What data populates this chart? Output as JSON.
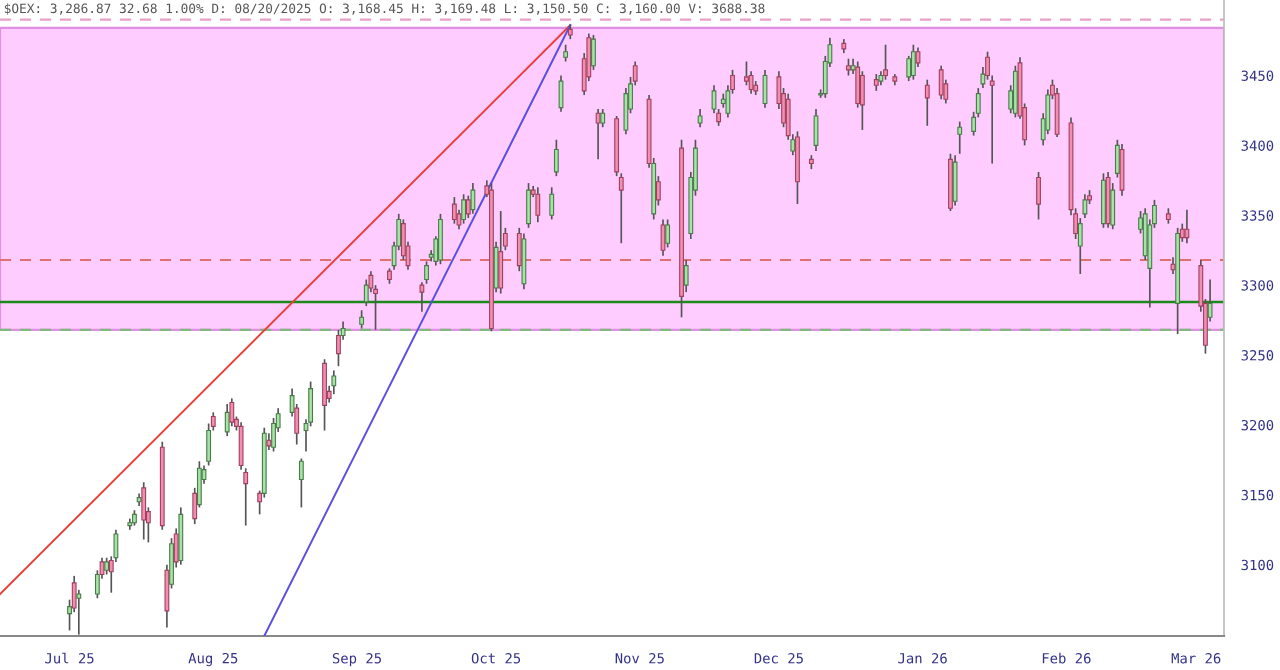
{
  "chart_data": {
    "type": "candlestick",
    "title": "$OEX: 3,286.87 32.68 1.00% D: 08/20/2025 O: 3,168.45 H: 3,169.48 L: 3,150.50 C: 3,160.00 V: 3688.38",
    "x": [
      "2025-07-01",
      "2025-07-02",
      "2025-07-03",
      "2025-07-07",
      "2025-07-08",
      "2025-07-09",
      "2025-07-10",
      "2025-07-11",
      "2025-07-14",
      "2025-07-15",
      "2025-07-16",
      "2025-07-17",
      "2025-07-18",
      "2025-07-21",
      "2025-07-22",
      "2025-07-23",
      "2025-07-24",
      "2025-07-25",
      "2025-07-28",
      "2025-07-29",
      "2025-07-30",
      "2025-07-31",
      "2025-08-01",
      "2025-08-04",
      "2025-08-05",
      "2025-08-06",
      "2025-08-07",
      "2025-08-08",
      "2025-08-11",
      "2025-08-12",
      "2025-08-13",
      "2025-08-14",
      "2025-08-15",
      "2025-08-18",
      "2025-08-19",
      "2025-08-20",
      "2025-08-21",
      "2025-08-22",
      "2025-08-25",
      "2025-08-26",
      "2025-08-27",
      "2025-08-28",
      "2025-08-29",
      "2025-09-02",
      "2025-09-03",
      "2025-09-04",
      "2025-09-05",
      "2025-09-08",
      "2025-09-09",
      "2025-09-10",
      "2025-09-11",
      "2025-09-12",
      "2025-09-15",
      "2025-09-16",
      "2025-09-17",
      "2025-09-18",
      "2025-09-19",
      "2025-09-22",
      "2025-09-23",
      "2025-09-24",
      "2025-09-25",
      "2025-09-26",
      "2025-09-29",
      "2025-09-30",
      "2025-10-01",
      "2025-10-02",
      "2025-10-03",
      "2025-10-06",
      "2025-10-07",
      "2025-10-08",
      "2025-10-09",
      "2025-10-10",
      "2025-10-13",
      "2025-10-14",
      "2025-10-15",
      "2025-10-16",
      "2025-10-17",
      "2025-10-20",
      "2025-10-21",
      "2025-10-22",
      "2025-10-23",
      "2025-10-24",
      "2025-10-27",
      "2025-10-28",
      "2025-10-29",
      "2025-10-30",
      "2025-10-31",
      "2025-11-03",
      "2025-11-04",
      "2025-11-05",
      "2025-11-06",
      "2025-11-07",
      "2025-11-10",
      "2025-11-11",
      "2025-11-12",
      "2025-11-13",
      "2025-11-14",
      "2025-11-17",
      "2025-11-18",
      "2025-11-19",
      "2025-11-20",
      "2025-11-21",
      "2025-11-24",
      "2025-11-25",
      "2025-11-26",
      "2025-11-28",
      "2025-12-01",
      "2025-12-02",
      "2025-12-03",
      "2025-12-04",
      "2025-12-05",
      "2025-12-08",
      "2025-12-09",
      "2025-12-10",
      "2025-12-11",
      "2025-12-12",
      "2025-12-15",
      "2025-12-16",
      "2025-12-17",
      "2025-12-18",
      "2025-12-19",
      "2025-12-22",
      "2025-12-23",
      "2025-12-24",
      "2025-12-26",
      "2025-12-29",
      "2025-12-30",
      "2025-12-31",
      "2026-01-02",
      "2026-01-05",
      "2026-01-06",
      "2026-01-07",
      "2026-01-08",
      "2026-01-09",
      "2026-01-12",
      "2026-01-13",
      "2026-01-14",
      "2026-01-15",
      "2026-01-16",
      "2026-01-20",
      "2026-01-21",
      "2026-01-22",
      "2026-01-23",
      "2026-01-26",
      "2026-01-27",
      "2026-01-28",
      "2026-01-29",
      "2026-01-30",
      "2026-02-02",
      "2026-02-03",
      "2026-02-04",
      "2026-02-05",
      "2026-02-06",
      "2026-02-09",
      "2026-02-10",
      "2026-02-11",
      "2026-02-12",
      "2026-02-13",
      "2026-02-17",
      "2026-02-18",
      "2026-02-19",
      "2026-02-20",
      "2026-02-23",
      "2026-02-24",
      "2026-02-25",
      "2026-02-26",
      "2026-02-27",
      "2026-03-02",
      "2026-03-03",
      "2026-03-04"
    ],
    "ohlc": [
      [
        3065,
        3075,
        3053,
        3070
      ],
      [
        3087,
        3092,
        3066,
        3069
      ],
      [
        3076,
        3082,
        3050,
        3079
      ],
      [
        3079,
        3096,
        3076,
        3093
      ],
      [
        3102,
        3105,
        3090,
        3093
      ],
      [
        3096,
        3105,
        3093,
        3102
      ],
      [
        3103,
        3106,
        3080,
        3095
      ],
      [
        3105,
        3125,
        3102,
        3122
      ],
      [
        3128,
        3133,
        3125,
        3130
      ],
      [
        3130,
        3139,
        3128,
        3136
      ],
      [
        3145,
        3151,
        3142,
        3148
      ],
      [
        3155,
        3159,
        3118,
        3132
      ],
      [
        3138,
        3141,
        3116,
        3130
      ],
      [
        3184,
        3188,
        3125,
        3128
      ],
      [
        3096,
        3100,
        3055,
        3067
      ],
      [
        3086,
        3119,
        3083,
        3115
      ],
      [
        3122,
        3126,
        3098,
        3102
      ],
      [
        3103,
        3141,
        3100,
        3136
      ],
      [
        3151,
        3155,
        3129,
        3133
      ],
      [
        3143,
        3174,
        3141,
        3169
      ],
      [
        3161,
        3171,
        3158,
        3168
      ],
      [
        3174,
        3201,
        3171,
        3196
      ],
      [
        3206,
        3209,
        3196,
        3199
      ],
      [
        3195,
        3215,
        3192,
        3209
      ],
      [
        3216,
        3219,
        3199,
        3202
      ],
      [
        3204,
        3206,
        3196,
        3199
      ],
      [
        3199,
        3202,
        3168,
        3171
      ],
      [
        3166,
        3169,
        3128,
        3158
      ],
      [
        3151,
        3153,
        3136,
        3145
      ],
      [
        3151,
        3198,
        3148,
        3194
      ],
      [
        3189,
        3194,
        3182,
        3185
      ],
      [
        3184,
        3205,
        3181,
        3201
      ],
      [
        3198,
        3212,
        3195,
        3208
      ],
      [
        3209,
        3226,
        3206,
        3221
      ],
      [
        3212,
        3215,
        3186,
        3194
      ],
      [
        3161,
        3176,
        3141,
        3174
      ],
      [
        3196,
        3204,
        3181,
        3201
      ],
      [
        3202,
        3231,
        3199,
        3226
      ],
      [
        3244,
        3247,
        3196,
        3214
      ],
      [
        3224,
        3228,
        3216,
        3219
      ],
      [
        3228,
        3239,
        3222,
        3235
      ],
      [
        3264,
        3268,
        3242,
        3251
      ],
      [
        3264,
        3274,
        3261,
        3269
      ],
      [
        3272,
        3282,
        3269,
        3277
      ],
      [
        3288,
        3304,
        3285,
        3300
      ],
      [
        3307,
        3310,
        3295,
        3298
      ],
      [
        3297,
        3300,
        3268,
        3294
      ],
      [
        3310,
        3312,
        3301,
        3304
      ],
      [
        3314,
        3331,
        3311,
        3328
      ],
      [
        3328,
        3351,
        3325,
        3347
      ],
      [
        3344,
        3347,
        3318,
        3321
      ],
      [
        3328,
        3331,
        3311,
        3314
      ],
      [
        3300,
        3302,
        3281,
        3295
      ],
      [
        3304,
        3317,
        3301,
        3314
      ],
      [
        3320,
        3325,
        3317,
        3322
      ],
      [
        3317,
        3335,
        3314,
        3333
      ],
      [
        3318,
        3351,
        3315,
        3347
      ],
      [
        3358,
        3363,
        3344,
        3347
      ],
      [
        3351,
        3354,
        3340,
        3343
      ],
      [
        3347,
        3365,
        3344,
        3361
      ],
      [
        3361,
        3364,
        3348,
        3351
      ],
      [
        3354,
        3373,
        3351,
        3368
      ],
      [
        3371,
        3375,
        3363,
        3365
      ],
      [
        3368,
        3373,
        3267,
        3269
      ],
      [
        3298,
        3331,
        3295,
        3327
      ],
      [
        3324,
        3353,
        3294,
        3298
      ],
      [
        3337,
        3341,
        3325,
        3328
      ],
      [
        3337,
        3341,
        3310,
        3314
      ],
      [
        3301,
        3337,
        3297,
        3333
      ],
      [
        3344,
        3373,
        3341,
        3368
      ],
      [
        3368,
        3371,
        3363,
        3365
      ],
      [
        3365,
        3370,
        3345,
        3350
      ],
      [
        3350,
        3370,
        3347,
        3365
      ],
      [
        3381,
        3404,
        3378,
        3397
      ],
      [
        3427,
        3450,
        3424,
        3446
      ],
      [
        3463,
        3472,
        3460,
        3467
      ],
      [
        3483,
        3486,
        3476,
        3479
      ],
      [
        3462,
        3466,
        3436,
        3439
      ],
      [
        3477,
        3480,
        3446,
        3449
      ],
      [
        3457,
        3479,
        3454,
        3476
      ],
      [
        3423,
        3426,
        3390,
        3416
      ],
      [
        3416,
        3426,
        3413,
        3423
      ],
      [
        3419,
        3421,
        3378,
        3381
      ],
      [
        3377,
        3380,
        3330,
        3368
      ],
      [
        3411,
        3441,
        3408,
        3437
      ],
      [
        3426,
        3449,
        3423,
        3444
      ],
      [
        3457,
        3460,
        3443,
        3446
      ],
      [
        3433,
        3436,
        3384,
        3387
      ],
      [
        3351,
        3391,
        3347,
        3387
      ],
      [
        3374,
        3378,
        3357,
        3361
      ],
      [
        3343,
        3347,
        3321,
        3325
      ],
      [
        3330,
        3347,
        3327,
        3343
      ],
      [
        3398,
        3404,
        3277,
        3292
      ],
      [
        3300,
        3318,
        3295,
        3314
      ],
      [
        3337,
        3381,
        3333,
        3377
      ],
      [
        3368,
        3404,
        3364,
        3398
      ],
      [
        3416,
        3426,
        3413,
        3421
      ],
      [
        3426,
        3443,
        3423,
        3439
      ],
      [
        3423,
        3426,
        3414,
        3417
      ],
      [
        3430,
        3437,
        3427,
        3433
      ],
      [
        3423,
        3443,
        3420,
        3439
      ],
      [
        3450,
        3454,
        3437,
        3440
      ],
      [
        3449,
        3460,
        3443,
        3446
      ],
      [
        3450,
        3453,
        3437,
        3440
      ],
      [
        3443,
        3446,
        3436,
        3439
      ],
      [
        3430,
        3454,
        3427,
        3450
      ],
      [
        3449,
        3453,
        3426,
        3430
      ],
      [
        3437,
        3441,
        3413,
        3416
      ],
      [
        3433,
        3437,
        3404,
        3407
      ],
      [
        3396,
        3408,
        3393,
        3404
      ],
      [
        3406,
        3410,
        3358,
        3374
      ],
      [
        3390,
        3393,
        3383,
        3387
      ],
      [
        3400,
        3426,
        3396,
        3421
      ],
      [
        3436,
        3440,
        3434,
        3437
      ],
      [
        3437,
        3464,
        3434,
        3460
      ],
      [
        3459,
        3477,
        3456,
        3472
      ],
      [
        3473,
        3476,
        3466,
        3469
      ],
      [
        3457,
        3462,
        3450,
        3454
      ],
      [
        3454,
        3462,
        3451,
        3457
      ],
      [
        3456,
        3460,
        3427,
        3430
      ],
      [
        3450,
        3453,
        3411,
        3429
      ],
      [
        3447,
        3451,
        3439,
        3443
      ],
      [
        3446,
        3453,
        3443,
        3450
      ],
      [
        3454,
        3472,
        3447,
        3450
      ],
      [
        3449,
        3451,
        3443,
        3446
      ],
      [
        3449,
        3464,
        3446,
        3462
      ],
      [
        3450,
        3472,
        3447,
        3467
      ],
      [
        3467,
        3470,
        3456,
        3459
      ],
      [
        3443,
        3447,
        3414,
        3434
      ],
      [
        3454,
        3457,
        3433,
        3436
      ],
      [
        3444,
        3447,
        3430,
        3433
      ],
      [
        3390,
        3394,
        3353,
        3355
      ],
      [
        3360,
        3393,
        3357,
        3388
      ],
      [
        3408,
        3417,
        3394,
        3413
      ],
      [
        3410,
        3424,
        3407,
        3420
      ],
      [
        3423,
        3441,
        3420,
        3437
      ],
      [
        3444,
        3456,
        3441,
        3451
      ],
      [
        3463,
        3467,
        3447,
        3450
      ],
      [
        3446,
        3450,
        3387,
        3443
      ],
      [
        3426,
        3443,
        3423,
        3439
      ],
      [
        3423,
        3457,
        3420,
        3453
      ],
      [
        3459,
        3463,
        3419,
        3421
      ],
      [
        3427,
        3430,
        3400,
        3404
      ],
      [
        3377,
        3381,
        3347,
        3358
      ],
      [
        3404,
        3423,
        3400,
        3419
      ],
      [
        3411,
        3440,
        3408,
        3436
      ],
      [
        3443,
        3447,
        3433,
        3436
      ],
      [
        3437,
        3441,
        3406,
        3408
      ],
      [
        3416,
        3420,
        3350,
        3354
      ],
      [
        3351,
        3355,
        3333,
        3337
      ],
      [
        3328,
        3348,
        3308,
        3344
      ],
      [
        3351,
        3365,
        3348,
        3361
      ],
      [
        3364,
        3368,
        3358,
        3361
      ],
      [
        3344,
        3380,
        3341,
        3375
      ],
      [
        3377,
        3381,
        3341,
        3344
      ],
      [
        3343,
        3373,
        3340,
        3368
      ],
      [
        3380,
        3404,
        3377,
        3400
      ],
      [
        3397,
        3401,
        3364,
        3368
      ],
      [
        3340,
        3353,
        3337,
        3348
      ],
      [
        3321,
        3355,
        3318,
        3351
      ],
      [
        3312,
        3347,
        3284,
        3343
      ],
      [
        3344,
        3361,
        3341,
        3357
      ],
      [
        3351,
        3355,
        3344,
        3347
      ],
      [
        3315,
        3320,
        3308,
        3311
      ],
      [
        3287,
        3341,
        3265,
        3337
      ],
      [
        3340,
        3344,
        3331,
        3334
      ],
      [
        3340,
        3354,
        3330,
        3334
      ],
      [
        3314,
        3318,
        3281,
        3285
      ],
      [
        3287,
        3290,
        3251,
        3257
      ],
      [
        3277,
        3304,
        3274,
        3287
      ]
    ],
    "series": [
      {
        "type": "line",
        "color": "#e8403c",
        "x": [
          "2025-06-16",
          "2025-10-17"
        ],
        "values": [
          3079,
          3486
        ]
      },
      {
        "type": "line",
        "color": "#5a4fe0",
        "x": [
          "2025-08-12",
          "2025-10-17"
        ],
        "values": [
          3049,
          3486
        ]
      }
    ],
    "bands": [
      {
        "axis": "y",
        "from": 3268,
        "to": 3484,
        "color": "#ffccff"
      }
    ],
    "ref_lines": [
      {
        "axis": "y",
        "value": 3490,
        "color": "#e8a0c8",
        "line_style": "dashed"
      },
      {
        "axis": "y",
        "value": 3318,
        "color": "#e07070",
        "line_style": "dashed"
      },
      {
        "axis": "y",
        "value": 3268,
        "color": "#80b880",
        "line_style": "dashed"
      },
      {
        "axis": "y",
        "value": 3288,
        "color": "#1a8a1a",
        "line_style": "solid"
      }
    ],
    "xlim": [
      "2025-06-16",
      "2026-03-07"
    ],
    "xticks": [
      {
        "value": "2025-07-01",
        "label": "Jul 25"
      },
      {
        "value": "2025-08-01",
        "label": "Aug 25"
      },
      {
        "value": "2025-09-01",
        "label": "Sep 25"
      },
      {
        "value": "2025-10-01",
        "label": "Oct 25"
      },
      {
        "value": "2025-11-01",
        "label": "Nov 25"
      },
      {
        "value": "2025-12-01",
        "label": "Dec 25"
      },
      {
        "value": "2026-01-01",
        "label": "Jan 26"
      },
      {
        "value": "2026-02-01",
        "label": "Feb 26"
      },
      {
        "value": "2026-03-01",
        "label": "Mar 26"
      }
    ],
    "ylim": [
      3049,
      3504
    ],
    "yticks": [
      3100,
      3150,
      3200,
      3250,
      3300,
      3350,
      3400,
      3450
    ],
    "grid": false
  }
}
